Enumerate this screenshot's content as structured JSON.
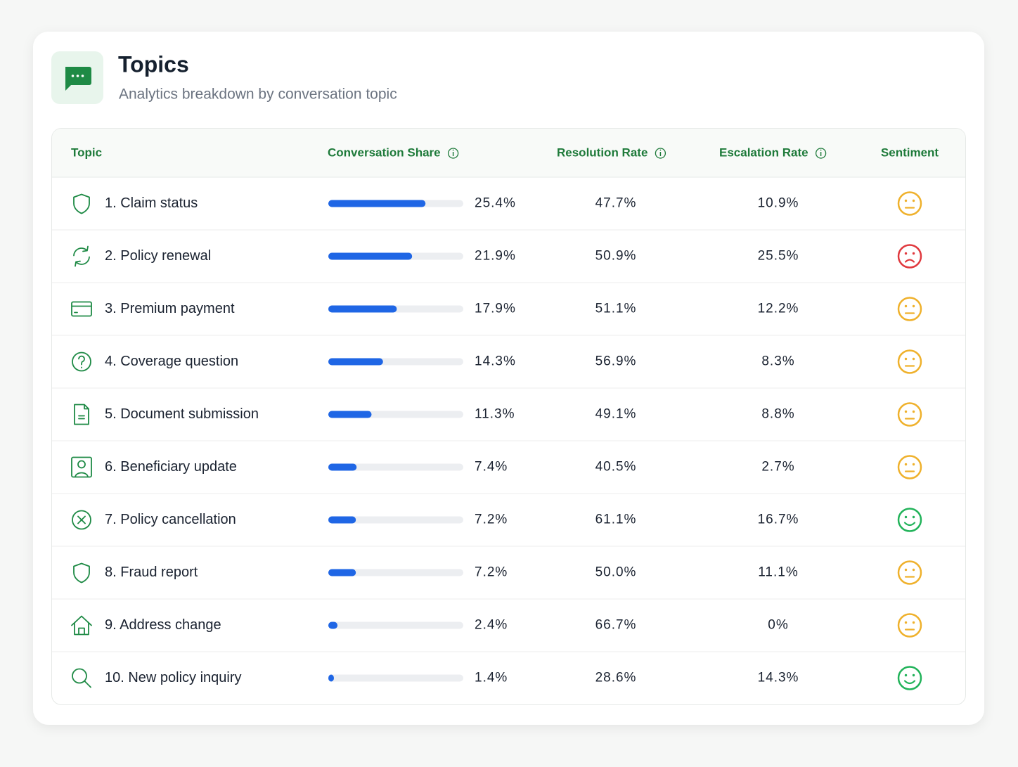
{
  "header": {
    "title": "Topics",
    "subtitle": "Analytics breakdown by conversation topic"
  },
  "table": {
    "columns": [
      "Topic",
      "Conversation Share",
      "Resolution Rate",
      "Escalation Rate",
      "Sentiment"
    ],
    "rows": [
      {
        "topic": "1. Claim status",
        "share": {
          "value": 25.4,
          "label": "25.4%"
        },
        "resolution": "47.7%",
        "escalation": "10.9%",
        "sentiment": "neutral"
      },
      {
        "topic": "2. Policy renewal",
        "share": {
          "value": 21.9,
          "label": "21.9%"
        },
        "resolution": "50.9%",
        "escalation": "25.5%",
        "sentiment": "negative"
      },
      {
        "topic": "3. Premium payment",
        "share": {
          "value": 17.9,
          "label": "17.9%"
        },
        "resolution": "51.1%",
        "escalation": "12.2%",
        "sentiment": "neutral"
      },
      {
        "topic": "4. Coverage question",
        "share": {
          "value": 14.3,
          "label": "14.3%"
        },
        "resolution": "56.9%",
        "escalation": "8.3%",
        "sentiment": "neutral"
      },
      {
        "topic": "5. Document submission",
        "share": {
          "value": 11.3,
          "label": "11.3%"
        },
        "resolution": "49.1%",
        "escalation": "8.8%",
        "sentiment": "neutral"
      },
      {
        "topic": "6. Beneficiary update",
        "share": {
          "value": 7.4,
          "label": "7.4%"
        },
        "resolution": "40.5%",
        "escalation": "2.7%",
        "sentiment": "neutral"
      },
      {
        "topic": "7. Policy cancellation",
        "share": {
          "value": 7.2,
          "label": "7.2%"
        },
        "resolution": "61.1%",
        "escalation": "16.7%",
        "sentiment": "positive"
      },
      {
        "topic": "8. Fraud report",
        "share": {
          "value": 7.2,
          "label": "7.2%"
        },
        "resolution": "50.0%",
        "escalation": "11.1%",
        "sentiment": "neutral"
      },
      {
        "topic": "9. Address change",
        "share": {
          "value": 2.4,
          "label": "2.4%"
        },
        "resolution": "66.7%",
        "escalation": "0%",
        "sentiment": "neutral"
      },
      {
        "topic": "10. New policy inquiry",
        "share": {
          "value": 1.4,
          "label": "1.4%"
        },
        "resolution": "28.6%",
        "escalation": "14.3%",
        "sentiment": "positive"
      }
    ]
  }
}
